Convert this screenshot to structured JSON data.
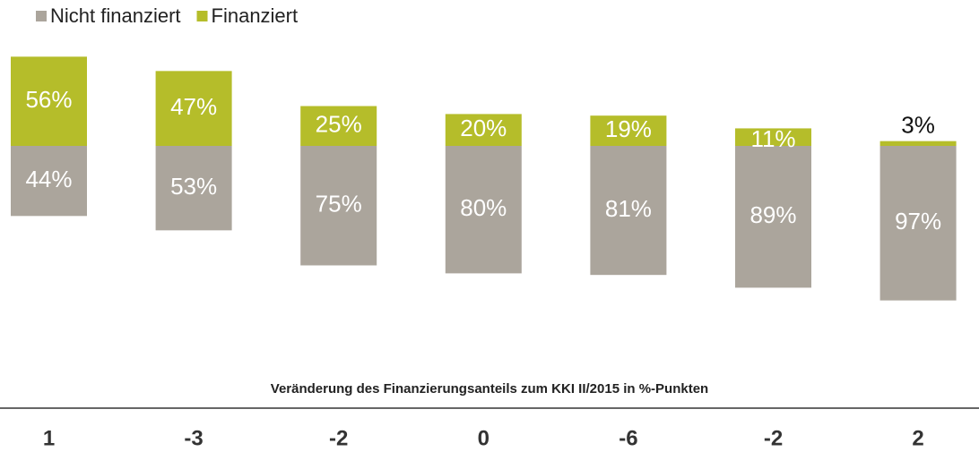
{
  "chart_data": {
    "type": "bar",
    "stacked": true,
    "series": [
      {
        "name": "Nicht finanziert",
        "color": "#aba59c",
        "values": [
          44,
          53,
          75,
          80,
          81,
          89,
          97
        ],
        "value_labels": [
          "44%",
          "53%",
          "75%",
          "80%",
          "81%",
          "89%",
          "97%"
        ]
      },
      {
        "name": "Finanziert",
        "color": "#b5bd2a",
        "values": [
          56,
          47,
          25,
          20,
          19,
          11,
          3
        ],
        "value_labels": [
          "56%",
          "47%",
          "25%",
          "20%",
          "19%",
          "11%",
          "3%"
        ]
      }
    ],
    "changes": {
      "title": "Veränderung des Finanzierungsanteils zum KKI II/2015 in %-Punkten",
      "values": [
        1,
        -3,
        -2,
        0,
        -6,
        -2,
        2
      ]
    }
  }
}
